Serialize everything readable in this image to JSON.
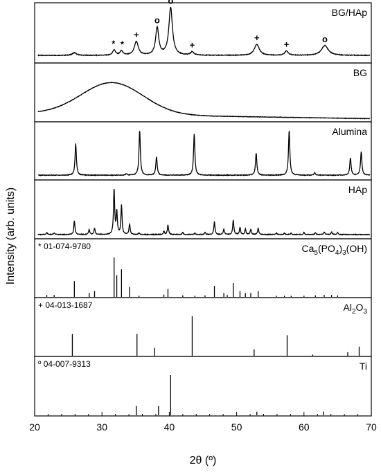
{
  "chart_data": {
    "type": "line",
    "xlabel": "2θ (º)",
    "ylabel": "Intensity (arb. units)",
    "xlim": [
      20,
      70
    ],
    "x_ticks": [
      "20",
      "30",
      "40",
      "50",
      "60",
      "70"
    ],
    "panels": [
      {
        "label": "BG/HAp",
        "kind": "profile",
        "baseline": 0.1,
        "peaks": [
          {
            "x": 25.9,
            "h": 0.05,
            "w": 0.35
          },
          {
            "x": 31.8,
            "h": 0.1,
            "w": 0.25
          },
          {
            "x": 32.9,
            "h": 0.08,
            "w": 0.25
          },
          {
            "x": 35.1,
            "h": 0.25,
            "w": 0.35
          },
          {
            "x": 38.2,
            "h": 0.5,
            "w": 0.28
          },
          {
            "x": 40.2,
            "h": 0.87,
            "w": 0.32
          },
          {
            "x": 43.4,
            "h": 0.06,
            "w": 0.3
          },
          {
            "x": 53.0,
            "h": 0.2,
            "w": 0.45
          },
          {
            "x": 57.4,
            "h": 0.08,
            "w": 0.3
          },
          {
            "x": 63.1,
            "h": 0.18,
            "w": 0.6
          }
        ],
        "markers": [
          {
            "x": 31.7,
            "symbol": "*"
          },
          {
            "x": 33.0,
            "symbol": "*"
          },
          {
            "x": 35.1,
            "symbol": "+"
          },
          {
            "x": 38.2,
            "symbol": "o"
          },
          {
            "x": 40.2,
            "symbol": "o"
          },
          {
            "x": 43.4,
            "symbol": "+"
          },
          {
            "x": 53.0,
            "symbol": "+"
          },
          {
            "x": 57.4,
            "symbol": "+"
          },
          {
            "x": 63.1,
            "symbol": "o"
          }
        ]
      },
      {
        "label": "BG",
        "kind": "amorphous",
        "baseline": 0.12,
        "halo": {
          "x": 31.5,
          "h": 0.6,
          "w": 6.5
        }
      },
      {
        "label": "Alumina",
        "kind": "profile",
        "baseline": 0.05,
        "peaks": [
          {
            "x": 26.1,
            "h": 0.6,
            "w": 0.12
          },
          {
            "x": 33.6,
            "h": 0.03,
            "w": 0.12
          },
          {
            "x": 35.6,
            "h": 0.85,
            "w": 0.12
          },
          {
            "x": 38.1,
            "h": 0.35,
            "w": 0.12
          },
          {
            "x": 43.7,
            "h": 0.78,
            "w": 0.12
          },
          {
            "x": 52.9,
            "h": 0.42,
            "w": 0.12
          },
          {
            "x": 57.8,
            "h": 0.85,
            "w": 0.12
          },
          {
            "x": 61.6,
            "h": 0.05,
            "w": 0.12
          },
          {
            "x": 66.9,
            "h": 0.33,
            "w": 0.12
          },
          {
            "x": 68.5,
            "h": 0.45,
            "w": 0.12
          }
        ]
      },
      {
        "label": "HAp",
        "kind": "profile",
        "baseline": 0.04,
        "peaks": [
          {
            "x": 21.8,
            "h": 0.04,
            "w": 0.1
          },
          {
            "x": 22.9,
            "h": 0.03,
            "w": 0.1
          },
          {
            "x": 25.9,
            "h": 0.26,
            "w": 0.1
          },
          {
            "x": 28.1,
            "h": 0.09,
            "w": 0.1
          },
          {
            "x": 28.9,
            "h": 0.12,
            "w": 0.1
          },
          {
            "x": 31.8,
            "h": 0.85,
            "w": 0.1
          },
          {
            "x": 32.2,
            "h": 0.42,
            "w": 0.1
          },
          {
            "x": 32.9,
            "h": 0.55,
            "w": 0.1
          },
          {
            "x": 34.1,
            "h": 0.19,
            "w": 0.1
          },
          {
            "x": 35.5,
            "h": 0.03,
            "w": 0.1
          },
          {
            "x": 39.2,
            "h": 0.06,
            "w": 0.1
          },
          {
            "x": 39.8,
            "h": 0.18,
            "w": 0.1
          },
          {
            "x": 42.0,
            "h": 0.04,
            "w": 0.1
          },
          {
            "x": 43.8,
            "h": 0.03,
            "w": 0.1
          },
          {
            "x": 45.3,
            "h": 0.04,
            "w": 0.1
          },
          {
            "x": 46.7,
            "h": 0.24,
            "w": 0.1
          },
          {
            "x": 48.1,
            "h": 0.1,
            "w": 0.1
          },
          {
            "x": 49.5,
            "h": 0.27,
            "w": 0.1
          },
          {
            "x": 50.5,
            "h": 0.13,
            "w": 0.1
          },
          {
            "x": 51.3,
            "h": 0.1,
            "w": 0.1
          },
          {
            "x": 52.1,
            "h": 0.1,
            "w": 0.1
          },
          {
            "x": 53.2,
            "h": 0.12,
            "w": 0.1
          },
          {
            "x": 55.9,
            "h": 0.03,
            "w": 0.1
          },
          {
            "x": 57.1,
            "h": 0.03,
            "w": 0.1
          },
          {
            "x": 58.1,
            "h": 0.03,
            "w": 0.1
          },
          {
            "x": 60.0,
            "h": 0.04,
            "w": 0.1
          },
          {
            "x": 61.7,
            "h": 0.04,
            "w": 0.1
          },
          {
            "x": 63.0,
            "h": 0.05,
            "w": 0.1
          },
          {
            "x": 64.1,
            "h": 0.05,
            "w": 0.1
          },
          {
            "x": 65.0,
            "h": 0.04,
            "w": 0.1
          }
        ]
      },
      {
        "label_main": "Ca",
        "label_parts": [
          {
            "text": "Ca",
            "sub": false
          },
          {
            "text": "5",
            "sub": true
          },
          {
            "text": "(PO",
            "sub": false
          },
          {
            "text": "4",
            "sub": true
          },
          {
            "text": ")",
            "sub": false
          },
          {
            "text": "3",
            "sub": true
          },
          {
            "text": "(OH)",
            "sub": false
          }
        ],
        "reference": "* 01-074-9780",
        "kind": "sticks",
        "sticks": [
          [
            21.8,
            0.05
          ],
          [
            22.9,
            0.05
          ],
          [
            25.9,
            0.4
          ],
          [
            28.1,
            0.1
          ],
          [
            28.9,
            0.15
          ],
          [
            31.8,
            1.0
          ],
          [
            32.2,
            0.55
          ],
          [
            32.9,
            0.7
          ],
          [
            34.1,
            0.25
          ],
          [
            35.5,
            0.03
          ],
          [
            39.2,
            0.06
          ],
          [
            39.8,
            0.2
          ],
          [
            42.0,
            0.04
          ],
          [
            43.8,
            0.03
          ],
          [
            45.3,
            0.04
          ],
          [
            46.7,
            0.28
          ],
          [
            48.1,
            0.1
          ],
          [
            48.6,
            0.05
          ],
          [
            49.5,
            0.35
          ],
          [
            50.5,
            0.15
          ],
          [
            51.3,
            0.1
          ],
          [
            52.1,
            0.1
          ],
          [
            53.2,
            0.15
          ],
          [
            55.9,
            0.03
          ],
          [
            57.1,
            0.03
          ],
          [
            58.1,
            0.03
          ],
          [
            60.0,
            0.03
          ],
          [
            61.7,
            0.04
          ],
          [
            63.0,
            0.05
          ],
          [
            64.1,
            0.05
          ],
          [
            65.0,
            0.04
          ]
        ]
      },
      {
        "label_parts": [
          {
            "text": "Al",
            "sub": false
          },
          {
            "text": "2",
            "sub": true
          },
          {
            "text": "O",
            "sub": false
          },
          {
            "text": "3",
            "sub": true
          }
        ],
        "reference": "+ 04-013-1687",
        "kind": "sticks",
        "sticks": [
          [
            25.6,
            0.55
          ],
          [
            35.2,
            0.55
          ],
          [
            37.8,
            0.2
          ],
          [
            43.4,
            1.0
          ],
          [
            52.6,
            0.16
          ],
          [
            57.5,
            0.52
          ],
          [
            61.3,
            0.03
          ],
          [
            66.5,
            0.09
          ],
          [
            68.2,
            0.23
          ]
        ]
      },
      {
        "label_parts": [
          {
            "text": "Ti",
            "sub": false
          }
        ],
        "reference": "º 04-007-9313",
        "kind": "sticks",
        "sticks": [
          [
            35.1,
            0.23
          ],
          [
            38.4,
            0.23
          ],
          [
            40.2,
            1.0
          ],
          [
            53.0,
            0.09
          ],
          [
            62.9,
            0.09
          ]
        ]
      }
    ]
  }
}
